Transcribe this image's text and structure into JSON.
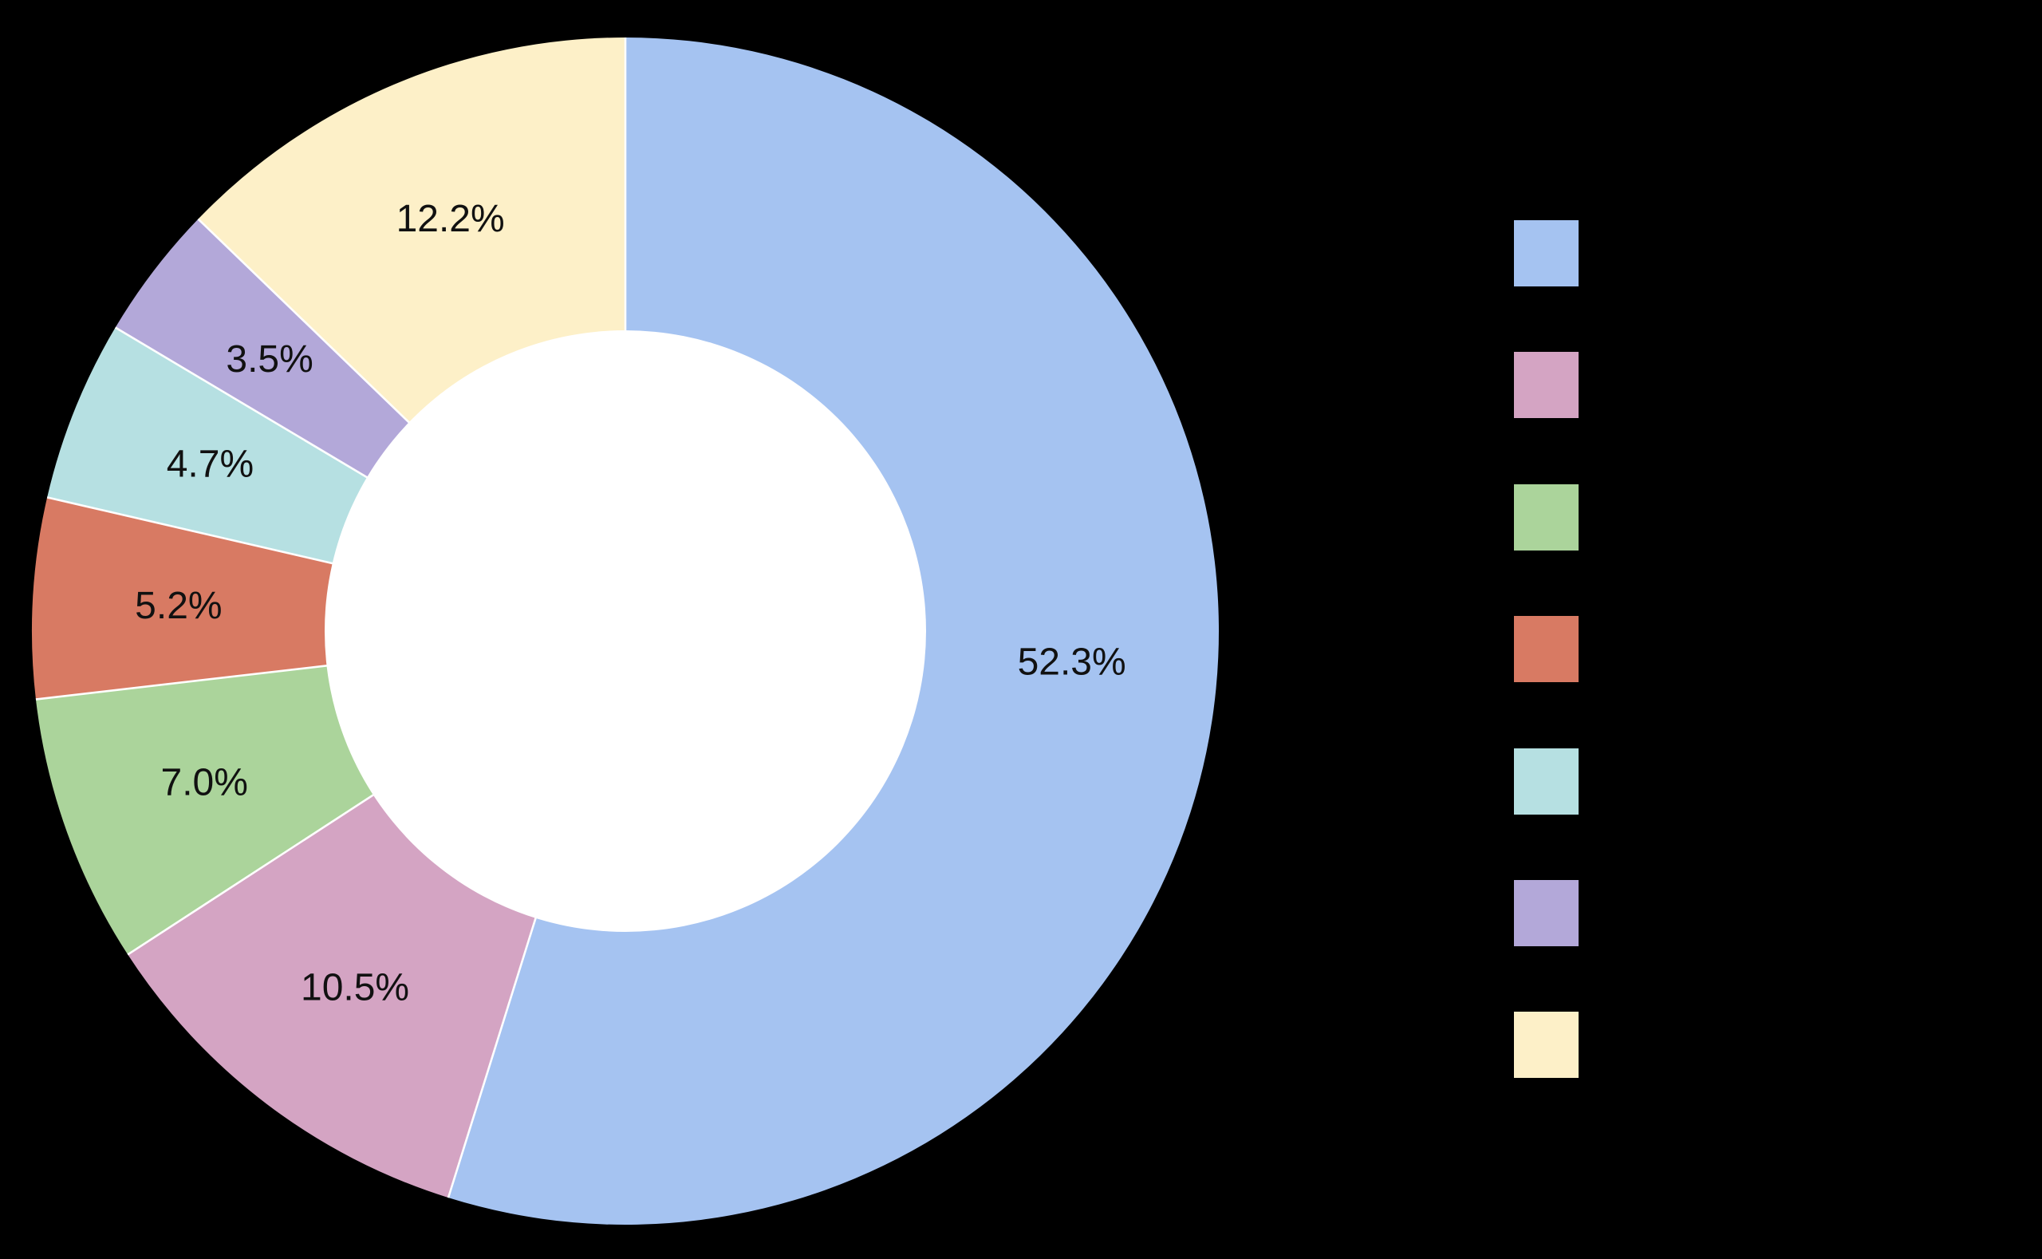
{
  "chart_data": {
    "type": "pie",
    "variant": "donut",
    "values": [
      52.3,
      10.5,
      7.0,
      5.2,
      4.7,
      3.5,
      12.2
    ],
    "slice_labels": [
      "52.3%",
      "10.5%",
      "7.0%",
      "5.2%",
      "4.7%",
      "3.5%",
      "12.2%"
    ],
    "colors": [
      "#a5c3f1",
      "#d4a4c3",
      "#abd49b",
      "#d87a63",
      "#b6e0e2",
      "#b3a8d9",
      "#fdf0c8"
    ],
    "start_position": "12-oclock",
    "direction": "clockwise",
    "angles_normalized_to_360": true,
    "donut_hole_ratio": 0.507,
    "background_color": "#000000",
    "hole_color": "#ffffff",
    "slice_divider_color": "#ffffff",
    "label_color": "#111111",
    "title": "",
    "legend": {
      "position": "right",
      "swatch_colors": [
        "#a5c3f1",
        "#d4a4c3",
        "#abd49b",
        "#d87a63",
        "#b6e0e2",
        "#b3a8d9",
        "#fdf0c8"
      ],
      "labels_visible": false
    }
  }
}
